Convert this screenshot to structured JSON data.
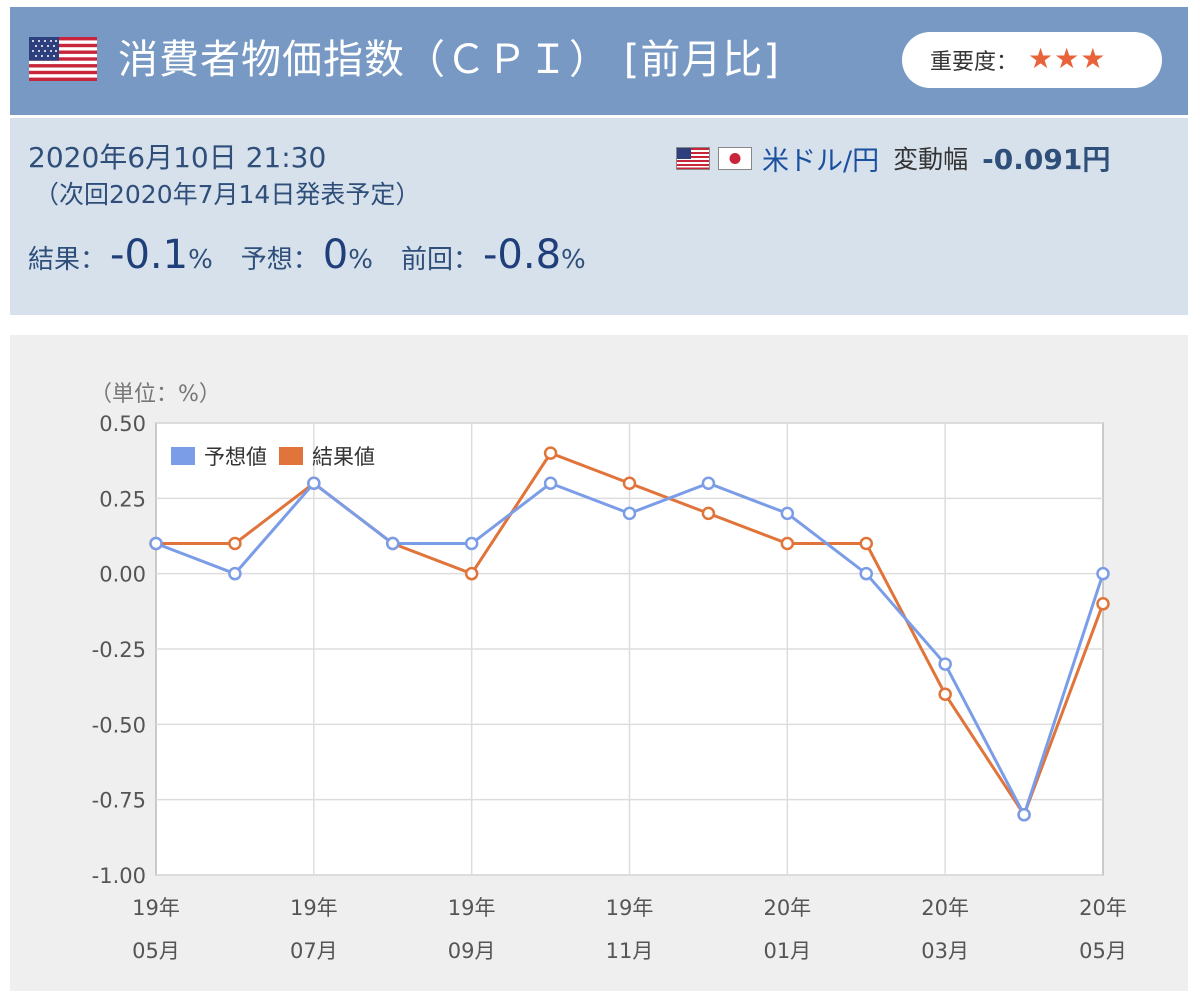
{
  "header": {
    "title": "消費者物価指数（ＣＰＩ） [前月比]",
    "importance_label": "重要度：",
    "importance_stars": "★★★",
    "flag_icon": "us-flag-icon"
  },
  "info": {
    "date": "2020年6月10日 21:30",
    "next_release": "（次回2020年7月14日発表予定）",
    "pair": "米ドル/円",
    "move_label": "変動幅",
    "move_value": "-0.091円",
    "result_label": "結果：",
    "result_value": "-0.1",
    "forecast_label": "予想：",
    "forecast_value": "0",
    "previous_label": "前回：",
    "previous_value": "-0.8",
    "unit": "%"
  },
  "colors": {
    "forecast": "#7b9de8",
    "result": "#e0743a",
    "header_bg": "#7899c3",
    "info_bg": "#d6e1ec"
  },
  "chart_data": {
    "type": "line",
    "unit_label": "（単位：%）",
    "x": [
      "19-05",
      "19-06",
      "19-07",
      "19-08",
      "19-09",
      "19-10",
      "19-11",
      "19-12",
      "20-01",
      "20-02",
      "20-03",
      "20-04",
      "20-05"
    ],
    "x_tick_labels": [
      {
        "index": 0,
        "year": "19年",
        "month": "05月"
      },
      {
        "index": 2,
        "year": "19年",
        "month": "07月"
      },
      {
        "index": 4,
        "year": "19年",
        "month": "09月"
      },
      {
        "index": 6,
        "year": "19年",
        "month": "11月"
      },
      {
        "index": 8,
        "year": "20年",
        "month": "01月"
      },
      {
        "index": 10,
        "year": "20年",
        "month": "03月"
      },
      {
        "index": 12,
        "year": "20年",
        "month": "05月"
      }
    ],
    "y_ticks": [
      "0.50",
      "0.25",
      "0.00",
      "-0.25",
      "-0.50",
      "-0.75",
      "-1.00"
    ],
    "ylim": [
      -1.0,
      0.5
    ],
    "grid": true,
    "legend_position": "top-left",
    "series": [
      {
        "name": "予想値",
        "color": "#7b9de8",
        "values": [
          0.1,
          0.0,
          0.3,
          0.1,
          0.1,
          0.3,
          0.2,
          0.3,
          0.2,
          0.0,
          -0.3,
          -0.8,
          0.0
        ]
      },
      {
        "name": "結果値",
        "color": "#e0743a",
        "values": [
          0.1,
          0.1,
          0.3,
          0.1,
          0.0,
          0.4,
          0.3,
          0.2,
          0.1,
          0.1,
          -0.4,
          -0.8,
          -0.1
        ]
      }
    ]
  }
}
